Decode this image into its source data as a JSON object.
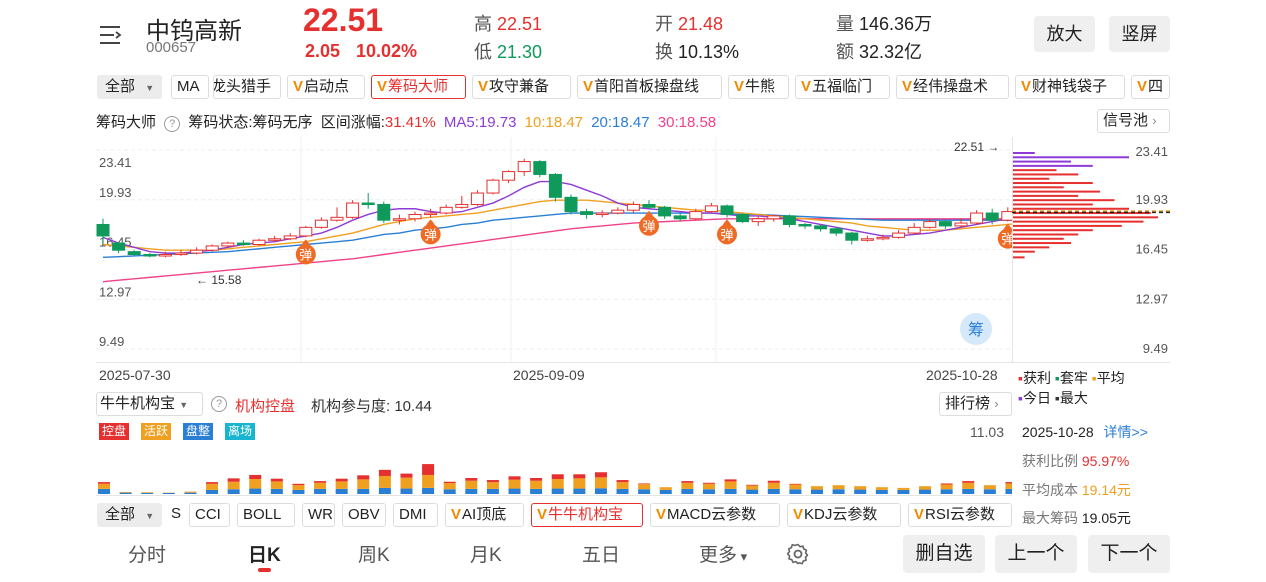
{
  "header": {
    "stock_name": "中钨高新",
    "stock_code": "000657",
    "price": "22.51",
    "change": "2.05",
    "change_pct": "10.02%",
    "high_label": "高",
    "high_value": "22.51",
    "low_label": "低",
    "low_value": "21.30",
    "open_label": "开",
    "open_value": "21.48",
    "turnover_label": "换",
    "turnover_value": "10.13%",
    "volume_label": "量",
    "volume_value": "146.36万",
    "amount_label": "额",
    "amount_value": "32.32亿",
    "zoom_button": "放大",
    "portrait_button": "竖屏"
  },
  "indicator_row": {
    "all_label": "全部",
    "ma_label": "MA",
    "chips": [
      "龙头猎手",
      "启动点",
      "筹码大师",
      "攻守兼备",
      "首阳首板操盘线",
      "牛熊",
      "五福临门",
      "经伟操盘术",
      "财神钱袋子",
      "四"
    ]
  },
  "info_line": {
    "title": "筹码大师",
    "status": "筹码状态:筹码无序",
    "range_label": "区间涨幅:",
    "range_value": "31.41%",
    "ma5": "MA5:19.73",
    "ma10": "10:18.47",
    "ma20": "20:18.47",
    "ma30": "30:18.58",
    "signal_pool": "信号池"
  },
  "colors": {
    "up": "#e5302f",
    "down": "#0f9a5b",
    "ma5": "#8e3bd6",
    "ma10": "#f0a020",
    "ma20": "#2a7fd4",
    "ma30": "#f0428a",
    "highlight": "#fdeccb"
  },
  "chart_data": {
    "type": "candlestick",
    "y_ticks": [
      "23.41",
      "19.93",
      "16.45",
      "12.97",
      "9.49"
    ],
    "ylim": [
      9.49,
      23.41
    ],
    "x_labels": [
      "2025-07-30",
      "2025-09-09",
      "2025-10-28"
    ],
    "annotations": {
      "low_mark": "15.58",
      "high_mark": "22.51",
      "signal_char": "弹",
      "chip_badge": "筹"
    },
    "candles": [
      [
        18.2,
        17.4,
        18.6,
        16.8
      ],
      [
        16.9,
        16.4,
        17.0,
        16.2
      ],
      [
        16.3,
        16.1,
        16.4,
        16.0
      ],
      [
        16.1,
        16.05,
        16.2,
        15.9
      ],
      [
        16.0,
        16.1,
        16.3,
        15.9
      ],
      [
        16.1,
        16.2,
        16.4,
        16.0
      ],
      [
        16.2,
        16.4,
        16.6,
        16.1
      ],
      [
        16.4,
        16.7,
        16.8,
        16.3
      ],
      [
        16.7,
        16.9,
        17.0,
        16.6
      ],
      [
        16.9,
        16.8,
        17.1,
        16.7
      ],
      [
        16.8,
        17.1,
        17.2,
        16.7
      ],
      [
        17.1,
        17.2,
        17.4,
        17.0
      ],
      [
        17.2,
        17.4,
        17.6,
        17.1
      ],
      [
        17.4,
        18.0,
        18.1,
        17.3
      ],
      [
        18.0,
        18.5,
        18.7,
        17.9
      ],
      [
        18.5,
        18.7,
        19.4,
        18.4
      ],
      [
        18.7,
        19.7,
        19.9,
        18.6
      ],
      [
        19.7,
        19.6,
        20.4,
        19.3
      ],
      [
        19.6,
        18.5,
        19.8,
        18.3
      ],
      [
        18.5,
        18.6,
        18.9,
        18.2
      ],
      [
        18.6,
        18.9,
        19.1,
        18.4
      ],
      [
        18.9,
        19.0,
        19.3,
        18.7
      ],
      [
        19.0,
        19.4,
        19.6,
        18.9
      ],
      [
        19.4,
        19.6,
        20.2,
        19.3
      ],
      [
        19.6,
        20.4,
        20.6,
        19.5
      ],
      [
        20.4,
        21.3,
        21.4,
        20.3
      ],
      [
        21.3,
        21.9,
        22.0,
        21.1
      ],
      [
        21.9,
        22.6,
        22.8,
        21.6
      ],
      [
        22.6,
        21.7,
        22.7,
        21.5
      ],
      [
        21.7,
        20.1,
        21.8,
        19.8
      ],
      [
        20.1,
        19.1,
        20.3,
        18.9
      ],
      [
        19.1,
        18.9,
        19.3,
        18.6
      ],
      [
        18.9,
        19.0,
        19.2,
        18.7
      ],
      [
        19.0,
        19.2,
        19.4,
        18.9
      ],
      [
        19.2,
        19.6,
        19.8,
        19.0
      ],
      [
        19.6,
        19.4,
        19.9,
        19.3
      ],
      [
        19.4,
        18.8,
        19.5,
        18.6
      ],
      [
        18.8,
        18.6,
        19.0,
        18.4
      ],
      [
        18.6,
        19.1,
        19.3,
        18.5
      ],
      [
        19.1,
        19.5,
        19.7,
        19.0
      ],
      [
        19.5,
        18.9,
        19.6,
        18.7
      ],
      [
        18.9,
        18.4,
        19.0,
        18.3
      ],
      [
        18.4,
        18.6,
        18.8,
        18.1
      ],
      [
        18.6,
        18.8,
        18.9,
        18.4
      ],
      [
        18.8,
        18.2,
        18.9,
        18.0
      ],
      [
        18.2,
        18.1,
        18.3,
        17.9
      ],
      [
        18.1,
        17.9,
        18.2,
        17.7
      ],
      [
        17.9,
        17.6,
        18.0,
        17.4
      ],
      [
        17.6,
        17.1,
        17.7,
        16.8
      ],
      [
        17.1,
        17.2,
        17.4,
        17.0
      ],
      [
        17.2,
        17.3,
        17.5,
        17.1
      ],
      [
        17.3,
        17.6,
        17.8,
        17.2
      ],
      [
        17.6,
        18.0,
        18.3,
        17.5
      ],
      [
        18.0,
        18.4,
        18.6,
        17.9
      ],
      [
        18.4,
        18.1,
        18.5,
        17.9
      ],
      [
        18.1,
        18.3,
        18.6,
        18.0
      ],
      [
        18.3,
        19.0,
        19.2,
        18.2
      ],
      [
        19.0,
        18.5,
        19.3,
        18.2
      ],
      [
        18.5,
        19.1,
        19.4,
        18.4
      ],
      [
        19.1,
        18.9,
        19.3,
        18.7
      ],
      [
        18.9,
        19.3,
        19.5,
        18.6
      ],
      [
        19.3,
        18.8,
        19.9,
        18.6
      ],
      [
        18.8,
        18.5,
        19.0,
        18.2
      ],
      [
        18.5,
        17.2,
        18.6,
        17.0
      ],
      [
        17.2,
        16.6,
        17.4,
        16.4
      ],
      [
        16.6,
        16.8,
        16.9,
        16.5
      ],
      [
        16.8,
        17.2,
        17.4,
        16.7
      ],
      [
        17.2,
        17.6,
        17.8,
        17.0
      ],
      [
        17.6,
        17.9,
        18.4,
        17.4
      ],
      [
        17.9,
        18.3,
        18.6,
        17.8
      ],
      [
        18.3,
        18.7,
        19.0,
        18.1
      ],
      [
        18.7,
        19.4,
        19.9,
        18.6
      ],
      [
        19.4,
        20.5,
        20.8,
        19.3
      ],
      [
        20.5,
        21.5,
        21.9,
        20.3
      ],
      [
        21.48,
        22.51,
        22.51,
        21.3
      ]
    ],
    "ma5": [
      17.3,
      16.9,
      16.6,
      16.3,
      16.2,
      16.2,
      16.3,
      16.4,
      16.6,
      16.8,
      16.9,
      17.0,
      17.2,
      17.4,
      17.6,
      18.0,
      18.5,
      18.9,
      19.2,
      19.3,
      19.3,
      19.1,
      19.0,
      19.1,
      19.4,
      19.7,
      20.2,
      20.8,
      21.2,
      21.2,
      21.0,
      20.6,
      20.2,
      19.7,
      19.4,
      19.3,
      19.2,
      19.1,
      19.0,
      19.0,
      18.9,
      18.8,
      18.8,
      18.7,
      18.6,
      18.4,
      18.2,
      18.0,
      17.8,
      17.6,
      17.4,
      17.4,
      17.5,
      17.6,
      17.8,
      18.0,
      18.2,
      18.4,
      18.6,
      18.7,
      18.8,
      18.9,
      18.9,
      18.6,
      18.2,
      17.8,
      17.4,
      17.3,
      17.4,
      17.6,
      17.9,
      18.2,
      18.7,
      19.3,
      19.73
    ],
    "ma10": [
      16.8,
      16.7,
      16.6,
      16.5,
      16.4,
      16.4,
      16.4,
      16.4,
      16.5,
      16.6,
      16.7,
      16.8,
      16.9,
      17.0,
      17.2,
      17.4,
      17.6,
      17.9,
      18.2,
      18.4,
      18.6,
      18.7,
      18.8,
      18.9,
      19.0,
      19.2,
      19.4,
      19.6,
      19.8,
      19.9,
      19.9,
      19.9,
      19.8,
      19.7,
      19.6,
      19.5,
      19.4,
      19.3,
      19.2,
      19.2,
      19.1,
      19.0,
      18.9,
      18.8,
      18.7,
      18.6,
      18.5,
      18.4,
      18.3,
      18.1,
      18.0,
      17.9,
      17.8,
      17.8,
      17.8,
      17.9,
      18.0,
      18.1,
      18.2,
      18.3,
      18.4,
      18.5,
      18.6,
      18.6,
      18.5,
      18.3,
      18.1,
      17.9,
      17.8,
      17.8,
      17.9,
      18.0,
      18.1,
      18.3,
      18.47
    ],
    "ma20": [
      15.9,
      15.95,
      16.0,
      16.05,
      16.1,
      16.15,
      16.2,
      16.25,
      16.3,
      16.4,
      16.5,
      16.6,
      16.7,
      16.8,
      16.9,
      17.0,
      17.1,
      17.3,
      17.5,
      17.6,
      17.8,
      17.9,
      18.0,
      18.2,
      18.3,
      18.5,
      18.6,
      18.7,
      18.8,
      18.9,
      19.0,
      19.0,
      19.0,
      19.0,
      19.0,
      19.0,
      19.0,
      19.0,
      19.0,
      19.0,
      18.95,
      18.9,
      18.9,
      18.85,
      18.8,
      18.75,
      18.7,
      18.65,
      18.6,
      18.55,
      18.5,
      18.5,
      18.5,
      18.5,
      18.5,
      18.5,
      18.5,
      18.5,
      18.5,
      18.5,
      18.55,
      18.6,
      18.6,
      18.6,
      18.55,
      18.5,
      18.45,
      18.4,
      18.35,
      18.3,
      18.3,
      18.3,
      18.35,
      18.4,
      18.47
    ],
    "ma30": [
      14.2,
      14.3,
      14.4,
      14.5,
      14.6,
      14.7,
      14.8,
      14.9,
      15.0,
      15.1,
      15.2,
      15.3,
      15.4,
      15.5,
      15.6,
      15.7,
      15.8,
      15.95,
      16.1,
      16.25,
      16.4,
      16.55,
      16.7,
      16.85,
      17.0,
      17.15,
      17.3,
      17.45,
      17.6,
      17.75,
      17.9,
      18.0,
      18.1,
      18.2,
      18.3,
      18.35,
      18.4,
      18.45,
      18.5,
      18.55,
      18.6,
      18.6,
      18.6,
      18.6,
      18.6,
      18.6,
      18.6,
      18.6,
      18.6,
      18.6,
      18.6,
      18.6,
      18.6,
      18.6,
      18.6,
      18.6,
      18.6,
      18.6,
      18.6,
      18.6,
      18.6,
      18.6,
      18.6,
      18.6,
      18.55,
      18.5,
      18.5,
      18.5,
      18.5,
      18.5,
      18.5,
      18.5,
      18.5,
      18.55,
      18.58
    ],
    "signals": [
      13,
      21,
      35,
      40,
      58,
      59,
      70
    ],
    "highlight_index": 60,
    "chip_distribution": [
      {
        "price": 23.2,
        "len": 0.15,
        "color": "#8e3bd6"
      },
      {
        "price": 22.9,
        "len": 0.8,
        "color": "#8e3bd6"
      },
      {
        "price": 22.6,
        "len": 0.4,
        "color": "#8e3bd6"
      },
      {
        "price": 22.3,
        "len": 0.55,
        "color": "#8e3bd6"
      },
      {
        "price": 22.0,
        "len": 0.3,
        "color": "#e5302f"
      },
      {
        "price": 21.7,
        "len": 0.45,
        "color": "#e5302f"
      },
      {
        "price": 21.4,
        "len": 0.25,
        "color": "#e5302f"
      },
      {
        "price": 21.1,
        "len": 0.55,
        "color": "#e5302f"
      },
      {
        "price": 20.8,
        "len": 0.35,
        "color": "#e5302f"
      },
      {
        "price": 20.5,
        "len": 0.6,
        "color": "#e5302f"
      },
      {
        "price": 20.2,
        "len": 0.45,
        "color": "#e5302f"
      },
      {
        "price": 19.9,
        "len": 0.7,
        "color": "#e5302f"
      },
      {
        "price": 19.6,
        "len": 0.55,
        "color": "#e5302f"
      },
      {
        "price": 19.3,
        "len": 0.8,
        "color": "#e5302f"
      },
      {
        "price": 19.0,
        "len": 0.95,
        "color": "#e5302f"
      },
      {
        "price": 18.7,
        "len": 1.0,
        "color": "#e5302f"
      },
      {
        "price": 18.4,
        "len": 0.9,
        "color": "#e5302f"
      },
      {
        "price": 18.1,
        "len": 0.75,
        "color": "#e5302f"
      },
      {
        "price": 17.8,
        "len": 0.55,
        "color": "#e5302f"
      },
      {
        "price": 17.5,
        "len": 0.45,
        "color": "#e5302f"
      },
      {
        "price": 17.2,
        "len": 0.35,
        "color": "#e5302f"
      },
      {
        "price": 16.9,
        "len": 0.4,
        "color": "#e5302f"
      },
      {
        "price": 16.6,
        "len": 0.25,
        "color": "#e5302f"
      },
      {
        "price": 16.3,
        "len": 0.15,
        "color": "#e5302f"
      },
      {
        "price": 15.9,
        "len": 0.08,
        "color": "#e5302f"
      }
    ],
    "chip_avg_price": 19.14,
    "chip_max_price": 19.05
  },
  "chip_legend": {
    "profit": "获利",
    "trapped": "套牢",
    "average": "平均",
    "today": "今日",
    "max": "最大"
  },
  "chip_stats": {
    "date": "2025-10-28",
    "detail_link": "详情>>",
    "profit_ratio_label": "获利比例",
    "profit_ratio_value": "95.97%",
    "avg_cost_label": "平均成本",
    "avg_cost_value": "19.14元",
    "max_chip_label": "最大筹码",
    "max_chip_value": "19.05元"
  },
  "institution": {
    "selector": "牛牛机构宝",
    "control_label": "机构控盘",
    "participation": "机构参与度: 10.44",
    "rank_button": "排行榜",
    "tags": [
      "控盘",
      "活跃",
      "盘整",
      "离场"
    ],
    "tag_colors": [
      "#e5302f",
      "#f0a020",
      "#2a7fd4",
      "#19b5d0"
    ],
    "max_value": "11.03",
    "bars": [
      [
        1.5,
        1.5,
        0.5,
        0
      ],
      [
        0.4,
        0.2,
        0,
        0
      ],
      [
        0.3,
        0.2,
        0,
        0
      ],
      [
        0.3,
        0.1,
        0,
        0
      ],
      [
        0.4,
        0.3,
        0,
        0
      ],
      [
        1.2,
        1.8,
        0.5,
        0
      ],
      [
        1.4,
        2.2,
        1.0,
        0
      ],
      [
        1.6,
        2.8,
        1.2,
        0
      ],
      [
        1.5,
        2.2,
        0.8,
        0
      ],
      [
        1.2,
        1.4,
        0.4,
        0
      ],
      [
        1.5,
        1.8,
        0.5,
        0
      ],
      [
        1.5,
        2.2,
        0.8,
        0
      ],
      [
        1.5,
        2.8,
        1.2,
        0
      ],
      [
        1.8,
        3.5,
        1.8,
        0
      ],
      [
        1.6,
        3.2,
        1.2,
        0
      ],
      [
        1.8,
        3.8,
        3.2,
        0
      ],
      [
        1.4,
        1.8,
        0.4,
        0
      ],
      [
        1.5,
        2.4,
        0.8,
        0
      ],
      [
        1.5,
        2.0,
        0.6,
        0
      ],
      [
        1.6,
        2.6,
        1.0,
        0
      ],
      [
        1.5,
        2.4,
        0.8,
        0
      ],
      [
        1.6,
        2.8,
        1.4,
        0
      ],
      [
        1.6,
        3.0,
        1.2,
        0
      ],
      [
        1.7,
        3.2,
        1.5,
        0
      ],
      [
        1.5,
        2.0,
        0.6,
        0
      ],
      [
        1.4,
        1.5,
        0.2,
        0
      ],
      [
        1.2,
        0.8,
        0,
        0
      ],
      [
        1.5,
        1.8,
        0.5,
        0
      ],
      [
        1.4,
        1.6,
        0.3,
        0
      ],
      [
        1.5,
        2.2,
        0.6,
        0
      ],
      [
        1.3,
        1.2,
        0.2,
        0
      ],
      [
        1.5,
        1.8,
        0.6,
        0
      ],
      [
        1.4,
        1.4,
        0.2,
        0
      ],
      [
        1.3,
        1.0,
        0,
        0
      ],
      [
        1.4,
        1.2,
        0,
        0
      ],
      [
        1.3,
        1.0,
        0,
        0
      ],
      [
        1.2,
        0.8,
        0,
        0
      ],
      [
        1.2,
        0.6,
        0,
        0
      ],
      [
        1.3,
        1.0,
        0,
        0
      ],
      [
        1.4,
        1.4,
        0.3,
        0
      ],
      [
        1.5,
        1.8,
        0.5,
        0
      ],
      [
        1.4,
        1.2,
        0,
        0
      ],
      [
        1.5,
        1.6,
        0.4,
        0
      ],
      [
        1.6,
        2.4,
        1.0,
        0
      ],
      [
        1.8,
        3.5,
        4.0,
        0
      ],
      [
        1.6,
        2.8,
        1.2,
        0
      ],
      [
        1.5,
        2.2,
        0.8,
        0
      ],
      [
        1.5,
        2.0,
        0.6,
        0
      ],
      [
        1.5,
        2.0,
        0.5,
        0
      ],
      [
        1.6,
        2.8,
        1.2,
        0
      ],
      [
        1.7,
        3.0,
        1.4,
        0
      ],
      [
        1.8,
        3.5,
        1.8,
        0
      ],
      [
        1.7,
        3.2,
        1.5,
        0
      ],
      [
        1.6,
        2.8,
        1.2,
        0
      ],
      [
        1.8,
        3.5,
        3.0,
        0
      ]
    ],
    "flame_indices": [
      44,
      50
    ]
  },
  "bottom_indicators": {
    "all_label": "全部",
    "chips": [
      "S",
      "CCI",
      "BOLL",
      "WR",
      "OBV",
      "DMI",
      "AI顶底",
      "牛牛机构宝",
      "MACD云参数",
      "KDJ云参数",
      "RSI云参数"
    ],
    "v_chips": [
      6,
      7,
      8,
      9,
      10
    ],
    "active": 7
  },
  "period_tabs": {
    "items": [
      "分时",
      "日K",
      "周K",
      "月K",
      "五日",
      "更多"
    ],
    "active": 1
  },
  "actions": {
    "remove": "删自选",
    "prev": "上一个",
    "next": "下一个"
  }
}
